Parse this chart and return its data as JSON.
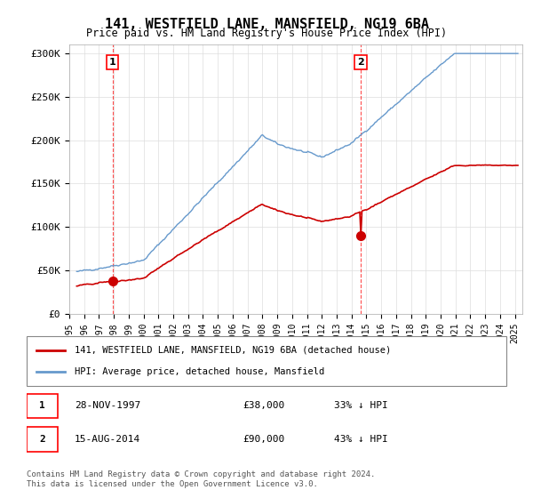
{
  "title1": "141, WESTFIELD LANE, MANSFIELD, NG19 6BA",
  "title2": "Price paid vs. HM Land Registry's House Price Index (HPI)",
  "ylabel_ticks": [
    "£0",
    "£50K",
    "£100K",
    "£150K",
    "£200K",
    "£250K",
    "£300K"
  ],
  "ytick_values": [
    0,
    50000,
    100000,
    150000,
    200000,
    250000,
    300000
  ],
  "ylim": [
    0,
    310000
  ],
  "xlim_start": 1995.5,
  "xlim_end": 2025.5,
  "hpi_color": "#6699cc",
  "price_color": "#cc0000",
  "marker_color": "#cc0000",
  "sale1_year": 1997.91,
  "sale1_price": 38000,
  "sale1_label": "1",
  "sale2_year": 2014.62,
  "sale2_price": 90000,
  "sale2_label": "2",
  "legend_line1": "141, WESTFIELD LANE, MANSFIELD, NG19 6BA (detached house)",
  "legend_line2": "HPI: Average price, detached house, Mansfield",
  "footnote": "Contains HM Land Registry data © Crown copyright and database right 2024.\nThis data is licensed under the Open Government Licence v3.0.",
  "bg_color": "#ffffff"
}
